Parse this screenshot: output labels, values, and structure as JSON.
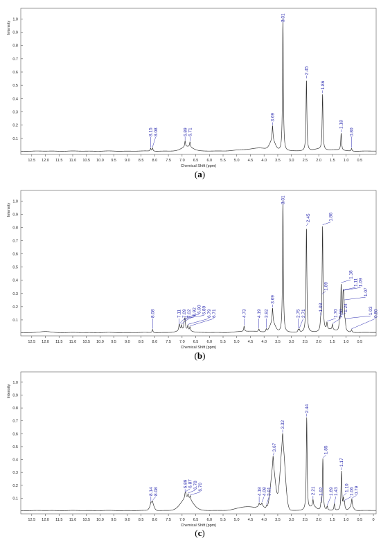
{
  "chart_data": [
    {
      "type": "line",
      "caption": "a",
      "xlabel": "Chemical Shift (ppm)",
      "ylabel": "Intensity",
      "xlim": [
        12.9,
        -0.1
      ],
      "ylim": [
        0,
        1.08
      ],
      "x_ticks": [
        "12.5",
        "12.0",
        "11.5",
        "11.0",
        "10.5",
        "10.0",
        "9.5",
        "9.0",
        "8.5",
        "8.0",
        "7.5",
        "7.0",
        "6.5",
        "6.0",
        "5.5",
        "5.0",
        "4.5",
        "4.0",
        "3.5",
        "3.0",
        "2.5",
        "2.0",
        "1.5",
        "1.0",
        "0.5"
      ],
      "y_ticks": [
        "0.1",
        "0.2",
        "0.3",
        "0.4",
        "0.5",
        "0.6",
        "0.7",
        "0.8",
        "0.9",
        "1.0"
      ],
      "peaks": [
        {
          "label": "8.15",
          "x": 8.15,
          "y": 0.02
        },
        {
          "label": "8.08",
          "x": 8.08,
          "y": 0.025
        },
        {
          "label": "6.89",
          "x": 6.89,
          "y": 0.045
        },
        {
          "label": "6.71",
          "x": 6.71,
          "y": 0.04
        },
        {
          "label": "3.69",
          "x": 3.69,
          "y": 0.11
        },
        {
          "label": "3.31",
          "x": 3.31,
          "y": 1.0
        },
        {
          "label": "2.45",
          "x": 2.45,
          "y": 0.54
        },
        {
          "label": "1.86",
          "x": 1.86,
          "y": 0.42
        },
        {
          "label": "1.18",
          "x": 1.18,
          "y": 0.13
        },
        {
          "label": "0.80",
          "x": 0.8,
          "y": 0.02
        }
      ],
      "bumps": [
        {
          "x": 6.8,
          "h": 0.035,
          "w": 0.28
        },
        {
          "x": 4.5,
          "h": 0.012,
          "w": 0.7
        },
        {
          "x": 4.1,
          "h": 0.015,
          "w": 0.35
        },
        {
          "x": 3.69,
          "h": 0.07,
          "w": 0.14
        },
        {
          "x": 2.0,
          "h": 0.015,
          "w": 0.25
        },
        {
          "x": 1.4,
          "h": 0.01,
          "w": 0.3
        }
      ]
    },
    {
      "type": "line",
      "caption": "b",
      "xlabel": "Chemical Shift (ppm)",
      "ylabel": "Intensity",
      "xlim": [
        12.9,
        -0.1
      ],
      "ylim": [
        0,
        1.08
      ],
      "x_ticks": [
        "12.5",
        "12.0",
        "11.5",
        "11.0",
        "10.5",
        "10.0",
        "9.5",
        "9.0",
        "8.5",
        "8.0",
        "7.5",
        "7.0",
        "6.5",
        "6.0",
        "5.5",
        "5.0",
        "4.5",
        "4.0",
        "3.5",
        "3.0",
        "2.5",
        "2.0",
        "1.5",
        "1.0",
        "0.5"
      ],
      "y_ticks": [
        "0.1",
        "0.2",
        "0.3",
        "0.4",
        "0.5",
        "0.6",
        "0.7",
        "0.8",
        "0.9",
        "1.0"
      ],
      "peaks": [
        {
          "label": "8.08",
          "x": 8.08,
          "y": 0.025
        },
        {
          "label": "7.11",
          "x": 7.11,
          "y": 0.03
        },
        {
          "label": "7.09",
          "x": 7.09,
          "y": 0.03
        },
        {
          "label": "7.02",
          "x": 7.02,
          "y": 0.035
        },
        {
          "label": "6.92",
          "x": 6.92,
          "y": 0.04
        },
        {
          "label": "6.90",
          "x": 6.9,
          "y": 0.04
        },
        {
          "label": "6.89",
          "x": 6.89,
          "y": 0.04
        },
        {
          "label": "6.79",
          "x": 6.79,
          "y": 0.035
        },
        {
          "label": "6.71",
          "x": 6.71,
          "y": 0.03
        },
        {
          "label": "4.73",
          "x": 4.73,
          "y": 0.04
        },
        {
          "label": "4.19",
          "x": 4.19,
          "y": 0.02
        },
        {
          "label": "3.92",
          "x": 3.92,
          "y": 0.02
        },
        {
          "label": "3.69",
          "x": 3.69,
          "y": 0.11
        },
        {
          "label": "3.31",
          "x": 3.31,
          "y": 1.0
        },
        {
          "label": "2.75",
          "x": 2.75,
          "y": 0.02
        },
        {
          "label": "2.71",
          "x": 2.71,
          "y": 0.02
        },
        {
          "label": "2.45",
          "x": 2.45,
          "y": 0.8
        },
        {
          "label": "1.93",
          "x": 1.93,
          "y": 0.06
        },
        {
          "label": "1.89",
          "x": 1.89,
          "y": 0.06
        },
        {
          "label": "1.86",
          "x": 1.86,
          "y": 0.78
        },
        {
          "label": "1.70",
          "x": 1.7,
          "y": 0.05
        },
        {
          "label": "1.50",
          "x": 1.5,
          "y": 0.04
        },
        {
          "label": "1.24",
          "x": 1.24,
          "y": 0.08
        },
        {
          "label": "1.18",
          "x": 1.18,
          "y": 0.34
        },
        {
          "label": "1.11",
          "x": 1.11,
          "y": 0.2
        },
        {
          "label": "1.09",
          "x": 1.09,
          "y": 0.15
        },
        {
          "label": "1.07",
          "x": 1.07,
          "y": 0.12
        },
        {
          "label": "1.03",
          "x": 1.03,
          "y": 0.05
        },
        {
          "label": "0.80",
          "x": 0.8,
          "y": 0.02
        }
      ],
      "bumps": [
        {
          "x": 12.0,
          "h": 0.008,
          "w": 0.25
        },
        {
          "x": 6.9,
          "h": 0.02,
          "w": 0.3
        },
        {
          "x": 4.5,
          "h": 0.01,
          "w": 0.6
        },
        {
          "x": 3.69,
          "h": 0.07,
          "w": 0.14
        },
        {
          "x": 1.6,
          "h": 0.02,
          "w": 0.3
        }
      ]
    },
    {
      "type": "line",
      "caption": "c",
      "xlabel": "Chemical Shift (ppm)",
      "ylabel": "Intensity",
      "xlim": [
        12.9,
        -0.1
      ],
      "ylim": [
        0,
        1.08
      ],
      "x_ticks": [
        "12.5",
        "12.0",
        "11.5",
        "11.0",
        "10.5",
        "10.0",
        "9.5",
        "9.0",
        "8.5",
        "8.0",
        "7.5",
        "7.0",
        "6.5",
        "6.0",
        "5.5",
        "5.0",
        "4.5",
        "4.0",
        "3.5",
        "3.0",
        "2.5",
        "2.0",
        "1.5",
        "1.0",
        "0.5",
        "0"
      ],
      "y_ticks": [
        "0.1",
        "0.2",
        "0.3",
        "0.4",
        "0.5",
        "0.6",
        "0.7",
        "0.8",
        "0.9",
        "1.0"
      ],
      "peaks": [
        {
          "label": "8.14",
          "x": 8.14,
          "y": 0.02
        },
        {
          "label": "8.08",
          "x": 8.08,
          "y": 0.02
        },
        {
          "label": "6.89",
          "x": 6.89,
          "y": 0.03
        },
        {
          "label": "6.87",
          "x": 6.87,
          "y": 0.03
        },
        {
          "label": "6.78",
          "x": 6.78,
          "y": 0.03
        },
        {
          "label": "6.70",
          "x": 6.7,
          "y": 0.03
        },
        {
          "label": "4.18",
          "x": 4.18,
          "y": 0.02
        },
        {
          "label": "4.08",
          "x": 4.08,
          "y": 0.02
        },
        {
          "label": "3.91",
          "x": 3.91,
          "y": 0.02
        },
        {
          "label": "3.67",
          "x": 3.67,
          "y": 0.1
        },
        {
          "label": "3.32",
          "x": 3.32,
          "y": 0.1
        },
        {
          "label": "2.44",
          "x": 2.44,
          "y": 0.72
        },
        {
          "label": "2.21",
          "x": 2.21,
          "y": 0.05
        },
        {
          "label": "1.92",
          "x": 1.92,
          "y": 0.04
        },
        {
          "label": "1.85",
          "x": 1.85,
          "y": 0.4
        },
        {
          "label": "1.69",
          "x": 1.69,
          "y": 0.03
        },
        {
          "label": "1.43",
          "x": 1.43,
          "y": 0.05
        },
        {
          "label": "1.17",
          "x": 1.17,
          "y": 0.3
        },
        {
          "label": "1.10",
          "x": 1.1,
          "y": 0.08
        },
        {
          "label": "1.06",
          "x": 1.06,
          "y": 0.05
        },
        {
          "label": "0.79",
          "x": 0.79,
          "y": 0.06
        }
      ],
      "bumps": [
        {
          "x": 8.1,
          "h": 0.055,
          "w": 0.1
        },
        {
          "x": 6.82,
          "h": 0.1,
          "w": 0.3
        },
        {
          "x": 4.6,
          "h": 0.03,
          "w": 0.5
        },
        {
          "x": 4.1,
          "h": 0.03,
          "w": 0.15
        },
        {
          "x": 3.67,
          "h": 0.32,
          "w": 0.13
        },
        {
          "x": 3.32,
          "h": 0.5,
          "w": 0.13
        },
        {
          "x": 2.2,
          "h": 0.03,
          "w": 0.15
        },
        {
          "x": 0.8,
          "h": 0.03,
          "w": 0.1
        }
      ]
    }
  ]
}
